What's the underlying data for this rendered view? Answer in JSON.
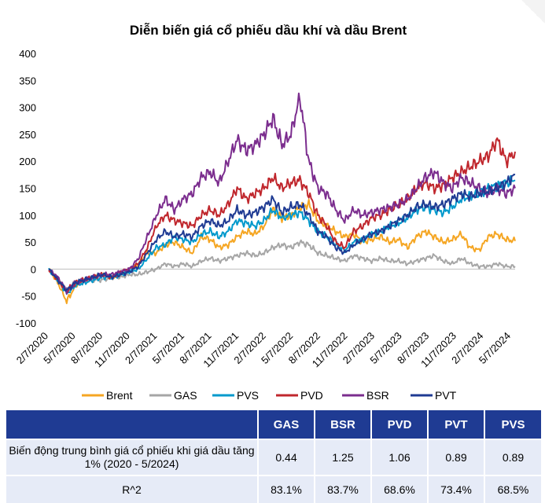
{
  "chart_data": {
    "type": "line",
    "title": "Diễn biến giá cổ phiếu dầu khí và dầu Brent",
    "xlabel": "",
    "ylabel": "",
    "ylim": [
      -100,
      400
    ],
    "yticks": [
      "400",
      "350",
      "300",
      "250",
      "200",
      "150",
      "100",
      "50",
      "0",
      "-50",
      "-100"
    ],
    "ytick_values": [
      400,
      350,
      300,
      250,
      200,
      150,
      100,
      50,
      0,
      -50,
      -100
    ],
    "xticks": [
      "2/7/2020",
      "5/7/2020",
      "8/7/2020",
      "11/7/2020",
      "2/7/2021",
      "5/7/2021",
      "8/7/2021",
      "11/7/2021",
      "2/7/2022",
      "5/7/2022",
      "8/7/2022",
      "11/7/2022",
      "2/7/2023",
      "5/7/2023",
      "8/7/2023",
      "11/7/2023",
      "2/7/2024",
      "5/7/2024"
    ],
    "grid": false,
    "legend_position": "bottom",
    "series": [
      {
        "name": "Brent",
        "color": "#f5a623",
        "values": [
          0,
          -25,
          -60,
          -30,
          -20,
          -15,
          -10,
          -15,
          -10,
          -5,
          10,
          30,
          30,
          45,
          50,
          40,
          30,
          60,
          55,
          40,
          45,
          60,
          70,
          65,
          80,
          110,
          95,
          100,
          115,
          120,
          90,
          80,
          70,
          60,
          65,
          50,
          55,
          60,
          50,
          55,
          40,
          60,
          70,
          60,
          50,
          55,
          65,
          40,
          35,
          60,
          65,
          55,
          52
        ]
      },
      {
        "name": "GAS",
        "color": "#a6a6a6",
        "values": [
          0,
          -20,
          -40,
          -25,
          -20,
          -20,
          -20,
          -15,
          -15,
          -10,
          -10,
          -5,
          0,
          10,
          5,
          10,
          5,
          15,
          20,
          15,
          20,
          25,
          30,
          25,
          30,
          40,
          45,
          40,
          50,
          45,
          30,
          25,
          20,
          15,
          25,
          20,
          15,
          20,
          15,
          15,
          10,
          15,
          20,
          25,
          15,
          10,
          20,
          10,
          5,
          5,
          10,
          5,
          5
        ]
      },
      {
        "name": "PVS",
        "color": "#0099cc",
        "values": [
          0,
          -20,
          -45,
          -30,
          -25,
          -20,
          -15,
          -15,
          -10,
          -5,
          0,
          20,
          40,
          45,
          60,
          55,
          50,
          65,
          70,
          60,
          70,
          90,
          85,
          80,
          90,
          110,
          95,
          100,
          105,
          90,
          70,
          60,
          45,
          35,
          50,
          55,
          65,
          70,
          80,
          85,
          95,
          110,
          115,
          110,
          105,
          115,
          130,
          135,
          140,
          150,
          155,
          160,
          165
        ]
      },
      {
        "name": "PVD",
        "color": "#c0272d",
        "values": [
          0,
          -20,
          -40,
          -25,
          -20,
          -15,
          -10,
          -15,
          -5,
          0,
          10,
          40,
          80,
          100,
          90,
          85,
          80,
          100,
          110,
          100,
          120,
          150,
          130,
          140,
          150,
          170,
          150,
          160,
          165,
          140,
          100,
          80,
          50,
          40,
          70,
          80,
          95,
          100,
          110,
          120,
          130,
          150,
          160,
          150,
          155,
          170,
          180,
          190,
          200,
          210,
          240,
          200,
          218
        ]
      },
      {
        "name": "BSR",
        "color": "#7b2d8e",
        "values": [
          0,
          -15,
          -40,
          -25,
          -20,
          -15,
          -10,
          -10,
          -5,
          0,
          20,
          60,
          100,
          130,
          110,
          130,
          140,
          170,
          180,
          160,
          200,
          240,
          220,
          230,
          250,
          280,
          230,
          250,
          320,
          200,
          150,
          140,
          110,
          90,
          110,
          100,
          105,
          110,
          115,
          120,
          130,
          150,
          170,
          180,
          160,
          150,
          170,
          160,
          150,
          140,
          150,
          140,
          150
        ]
      },
      {
        "name": "PVT",
        "color": "#1f3b93",
        "values": [
          0,
          -20,
          -40,
          -25,
          -20,
          -15,
          -10,
          -15,
          -10,
          -5,
          5,
          30,
          55,
          70,
          60,
          65,
          60,
          80,
          90,
          80,
          90,
          110,
          100,
          105,
          115,
          130,
          105,
          115,
          120,
          100,
          70,
          60,
          40,
          30,
          45,
          55,
          65,
          70,
          80,
          90,
          100,
          115,
          120,
          115,
          120,
          130,
          140,
          135,
          140,
          145,
          150,
          160,
          175
        ]
      }
    ]
  },
  "table": {
    "headers": [
      "",
      "GAS",
      "BSR",
      "PVD",
      "PVT",
      "PVS"
    ],
    "rows": [
      {
        "label": "Biến động trung bình giá cổ phiếu khi giá dầu tăng 1% (2020 - 5/2024)",
        "values": [
          "0.44",
          "1.25",
          "1.06",
          "0.89",
          "0.89"
        ]
      },
      {
        "label": "R^2",
        "values": [
          "83.1%",
          "83.7%",
          "68.6%",
          "73.4%",
          "68.5%"
        ]
      }
    ]
  }
}
